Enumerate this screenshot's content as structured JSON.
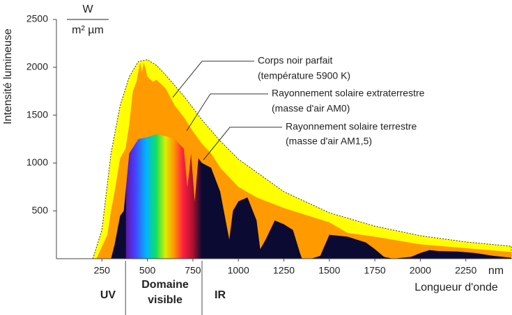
{
  "chart_data": {
    "type": "area",
    "y_label": "Intensité lumineuse",
    "y_unit": {
      "numerator": "W",
      "denominator": "m² µm"
    },
    "x_label": "Longueur d'onde",
    "x_unit": "nm",
    "xlim": [
      0,
      2500
    ],
    "xticks": [
      250,
      500,
      750,
      1000,
      1250,
      1500,
      1750,
      2000,
      2250
    ],
    "ylim": [
      0,
      2500
    ],
    "yticks": [
      500,
      1000,
      1500,
      2000,
      2500
    ],
    "grid": false,
    "visible_range": [
      380,
      800
    ],
    "region_labels": {
      "uv": "UV",
      "visible": [
        "Domaine",
        "visible"
      ],
      "ir": "IR"
    },
    "series": [
      {
        "name": "Corps noir parfait",
        "note": "(température 5900 K)",
        "color": "#ffff00",
        "x": [
          200,
          250,
          300,
          350,
          400,
          450,
          500,
          550,
          600,
          700,
          800,
          900,
          1000,
          1250,
          1500,
          1750,
          2000,
          2250,
          2500
        ],
        "values": [
          0,
          300,
          1100,
          1600,
          1900,
          2060,
          2080,
          2020,
          1920,
          1700,
          1450,
          1230,
          1040,
          700,
          480,
          340,
          240,
          175,
          130
        ]
      },
      {
        "name": "Rayonnement solaire extraterrestre",
        "note": "(masse d'air AM0)",
        "color": "#ff9a00",
        "x": [
          220,
          280,
          300,
          320,
          350,
          380,
          400,
          420,
          440,
          460,
          470,
          480,
          490,
          500,
          530,
          550,
          600,
          650,
          700,
          750,
          800,
          850,
          900,
          1000,
          1100,
          1250,
          1500,
          1600,
          1750,
          2000,
          2250,
          2500
        ],
        "values": [
          0,
          250,
          500,
          700,
          1050,
          1150,
          1400,
          1750,
          1850,
          2050,
          1950,
          2050,
          1980,
          1900,
          1850,
          1870,
          1780,
          1600,
          1480,
          1330,
          1200,
          1100,
          950,
          750,
          640,
          530,
          380,
          270,
          230,
          150,
          110,
          70
        ]
      },
      {
        "name": "Rayonnement solaire terrestre",
        "note": "(masse d'air AM1,5)",
        "color": "#0a0a33",
        "x": [
          300,
          320,
          350,
          370,
          400,
          450,
          500,
          550,
          600,
          650,
          700,
          720,
          740,
          760,
          780,
          800,
          850,
          900,
          930,
          950,
          970,
          1000,
          1050,
          1100,
          1120,
          1150,
          1200,
          1250,
          1300,
          1340,
          1350,
          1400,
          1450,
          1500,
          1550,
          1600,
          1700,
          1750,
          1800,
          1850,
          1950,
          2000,
          2050,
          2100,
          2200,
          2300,
          2400,
          2500
        ],
        "values": [
          0,
          150,
          450,
          500,
          1100,
          1250,
          1270,
          1300,
          1280,
          1250,
          1150,
          750,
          1100,
          600,
          1050,
          1000,
          950,
          700,
          400,
          200,
          500,
          600,
          640,
          400,
          100,
          200,
          400,
          360,
          300,
          50,
          0,
          0,
          30,
          250,
          240,
          230,
          170,
          100,
          20,
          0,
          20,
          60,
          90,
          80,
          75,
          60,
          30,
          10
        ]
      }
    ]
  }
}
